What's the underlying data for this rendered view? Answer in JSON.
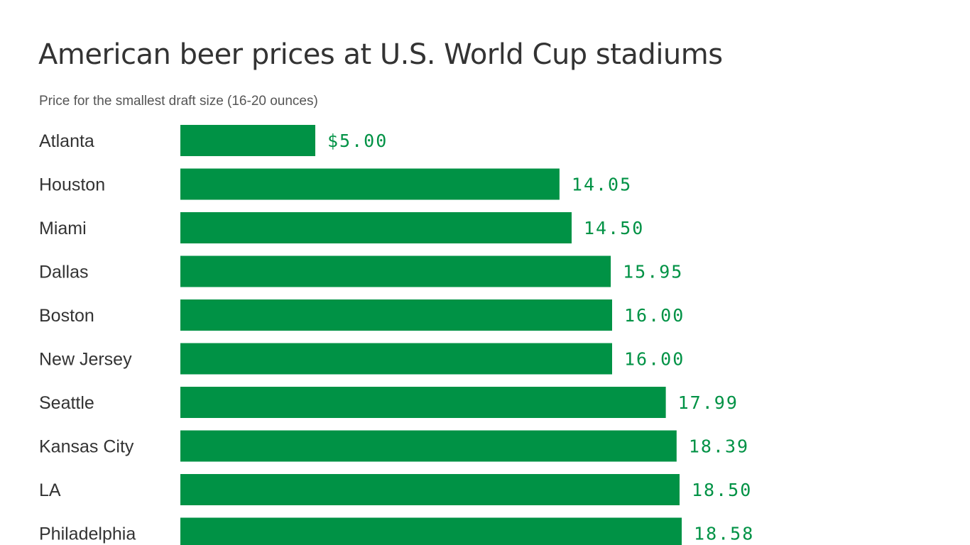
{
  "chart_data": {
    "type": "bar",
    "orientation": "horizontal",
    "title": "American beer prices at U.S. World Cup stadiums",
    "subtitle": "Price for the smallest draft size (16-20 ounces)",
    "categories": [
      "Atlanta",
      "Houston",
      "Miami",
      "Dallas",
      "Boston",
      "New Jersey",
      "Seattle",
      "Kansas City",
      "LA",
      "Philadelphia"
    ],
    "values": [
      5.0,
      14.05,
      14.5,
      15.95,
      16.0,
      16.0,
      17.99,
      18.39,
      18.5,
      18.58
    ],
    "value_labels": [
      "$5.00",
      "14.05",
      "14.50",
      "15.95",
      "16.00",
      "16.00",
      "17.99",
      "18.39",
      "18.50",
      "18.58"
    ],
    "xlim": [
      0,
      28
    ],
    "grid": false,
    "legend": "none",
    "bar_color": "#009245",
    "label_color": "#009245"
  }
}
